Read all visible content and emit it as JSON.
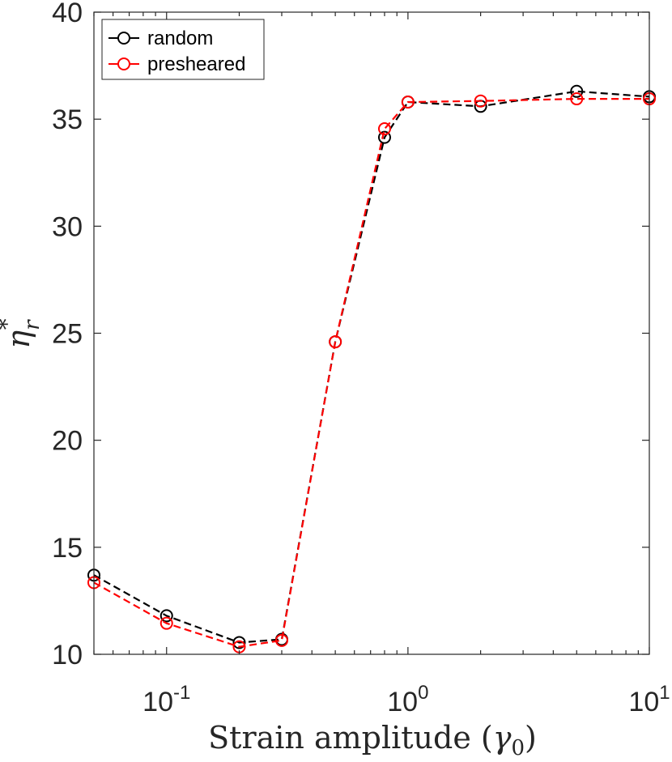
{
  "chart_data": {
    "type": "line",
    "xlabel": "Strain amplitude (γ0)",
    "xlabel_main": "Strain amplitude (",
    "xlabel_symbol": "γ",
    "xlabel_sub": "0",
    "xlabel_close": ")",
    "ylabel_symbol": "η",
    "ylabel_sup": "*",
    "ylabel_sub": "r",
    "xscale": "log",
    "xlim": [
      0.05,
      10
    ],
    "ylim": [
      10,
      40
    ],
    "x_ticks": [
      {
        "base": "10",
        "exp": "-1",
        "value": 0.1
      },
      {
        "base": "10",
        "exp": "0",
        "value": 1
      },
      {
        "base": "10",
        "exp": "1",
        "value": 10
      }
    ],
    "y_ticks": [
      "10",
      "15",
      "20",
      "25",
      "30",
      "35",
      "40"
    ],
    "legend_position": "top-left",
    "grid": false,
    "series": [
      {
        "name": "random",
        "color": "#000000",
        "x": [
          0.05,
          0.1,
          0.2,
          0.3,
          0.5,
          0.8,
          1,
          2,
          5,
          10
        ],
        "y": [
          13.7,
          11.8,
          10.55,
          10.7,
          24.6,
          34.15,
          35.8,
          35.6,
          36.3,
          36.05
        ]
      },
      {
        "name": "presheared",
        "color": "#ff0000",
        "x": [
          0.05,
          0.1,
          0.2,
          0.3,
          0.5,
          0.8,
          1,
          2,
          5,
          10
        ],
        "y": [
          13.35,
          11.45,
          10.35,
          10.65,
          24.6,
          34.55,
          35.8,
          35.85,
          35.95,
          35.95
        ]
      }
    ]
  }
}
